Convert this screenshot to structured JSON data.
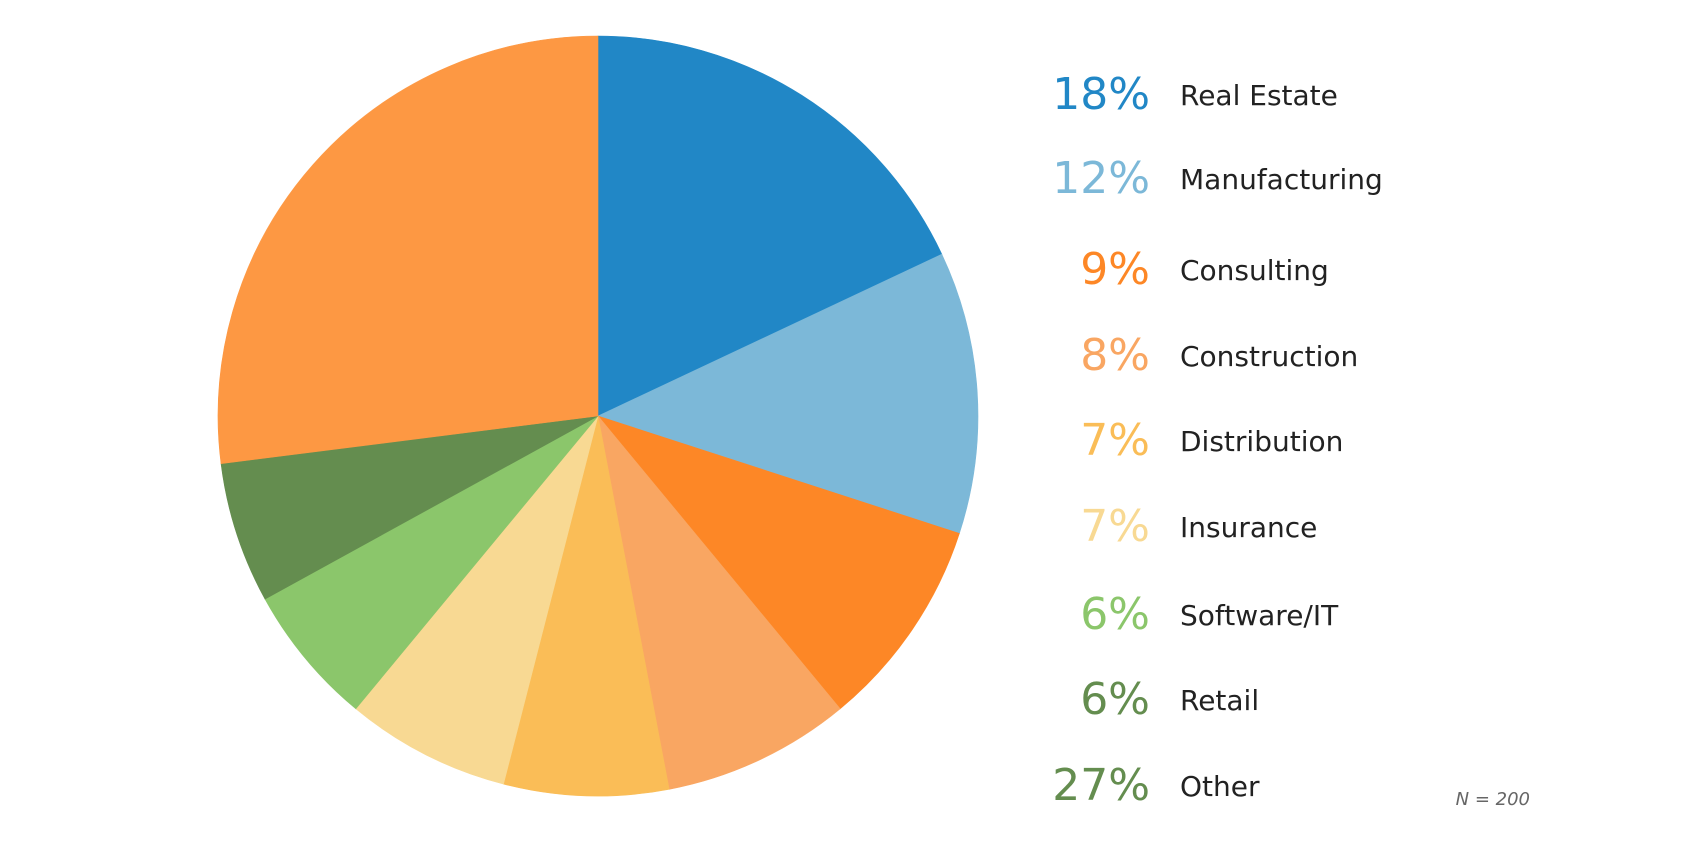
{
  "chart_data": {
    "type": "pie",
    "title": "",
    "start_angle": "12 o'clock",
    "direction": "clockwise",
    "slices": [
      {
        "label": "Real Estate",
        "value": 18,
        "pct_label": "18%",
        "color": "#2187c6"
      },
      {
        "label": "Manufacturing",
        "value": 12,
        "pct_label": "12%",
        "color": "#7cb8d8"
      },
      {
        "label": "Consulting",
        "value": 9,
        "pct_label": "9%",
        "color": "#fd8726"
      },
      {
        "label": "Construction",
        "value": 8,
        "pct_label": "8%",
        "color": "#f9a662"
      },
      {
        "label": "Distribution",
        "value": 7,
        "pct_label": "7%",
        "color": "#fabd57"
      },
      {
        "label": "Insurance",
        "value": 7,
        "pct_label": "7%",
        "color": "#f8d993"
      },
      {
        "label": "Software/IT",
        "value": 6,
        "pct_label": "6%",
        "color": "#8bc66b"
      },
      {
        "label": "Retail",
        "value": 6,
        "pct_label": "6%",
        "color": "#648d4f"
      },
      {
        "label": "Other",
        "value": 27,
        "pct_label": "27%",
        "color": "#fd9843"
      }
    ],
    "legend_placement": "right",
    "pct_label_colors": [
      "#2187c6",
      "#7cb8d8",
      "#fd8726",
      "#f9a662",
      "#fabd57",
      "#f8d993",
      "#8bc66b",
      "#648d4f",
      "#648d4f"
    ],
    "note": "N = 200"
  }
}
